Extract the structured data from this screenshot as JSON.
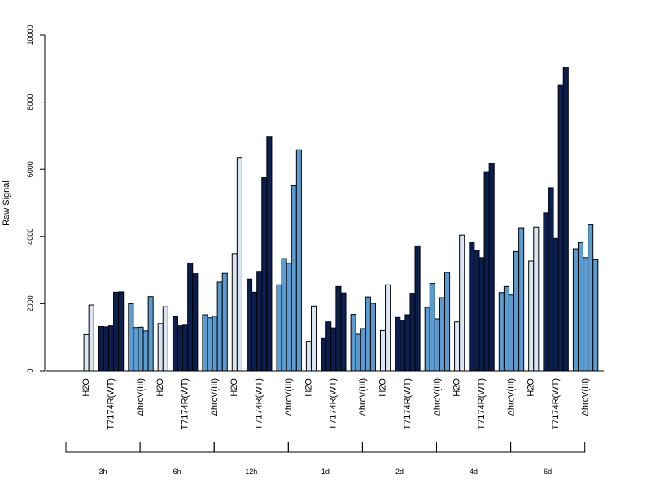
{
  "chart_data": {
    "type": "bar",
    "title": "",
    "xlabel": "",
    "ylabel": "Raw Signal",
    "ylim": [
      0,
      10000
    ],
    "yticks": [
      0,
      2000,
      4000,
      6000,
      8000,
      10000
    ],
    "ytick_labels": [
      "0",
      "2000",
      "4000",
      "6000",
      "8000",
      "10000"
    ],
    "grid": false,
    "legend": "none",
    "treatments": [
      {
        "label": "H2O",
        "color": "#dce6f2"
      },
      {
        "label": "T7174R(WT)",
        "color": "#0b1f4f"
      },
      {
        "label": "ΔhrcV(III)",
        "color": "#5b9bd0"
      }
    ],
    "groups": [
      {
        "label": "3h",
        "bars": [
          [
            0,
            1080,
            1960
          ],
          [
            1320,
            1310,
            1340,
            2340,
            2350
          ],
          [
            2000,
            1290,
            1300,
            1190,
            2210
          ]
        ]
      },
      {
        "label": "6h",
        "bars": [
          [
            0,
            1410,
            1910
          ],
          [
            1620,
            1340,
            1360,
            3210,
            2890
          ],
          [
            1670,
            1580,
            1630,
            2640,
            2900
          ]
        ]
      },
      {
        "label": "12h",
        "bars": [
          [
            0,
            3490,
            6350
          ],
          [
            2730,
            2340,
            2960,
            5750,
            6980
          ],
          [
            2560,
            3340,
            3200,
            5510,
            6580
          ]
        ]
      },
      {
        "label": "1d",
        "bars": [
          [
            0,
            880,
            1930
          ],
          [
            960,
            1460,
            1280,
            2510,
            2320
          ],
          [
            1680,
            1090,
            1260,
            2200,
            2010
          ]
        ]
      },
      {
        "label": "2d",
        "bars": [
          [
            0,
            1200,
            2560
          ],
          [
            1590,
            1510,
            1670,
            2310,
            3720
          ],
          [
            1890,
            2600,
            1550,
            2180,
            2930
          ]
        ]
      },
      {
        "label": "4d",
        "bars": [
          [
            0,
            1460,
            4040
          ],
          [
            3830,
            3590,
            3370,
            5930,
            6180
          ],
          [
            2330,
            2510,
            2260,
            3550,
            4260
          ]
        ]
      },
      {
        "label": "6d",
        "bars": [
          [
            0,
            3270,
            4280
          ],
          [
            4700,
            5450,
            3940,
            8520,
            9040
          ],
          [
            3630,
            3820,
            3370,
            4350,
            3310
          ]
        ]
      }
    ]
  }
}
